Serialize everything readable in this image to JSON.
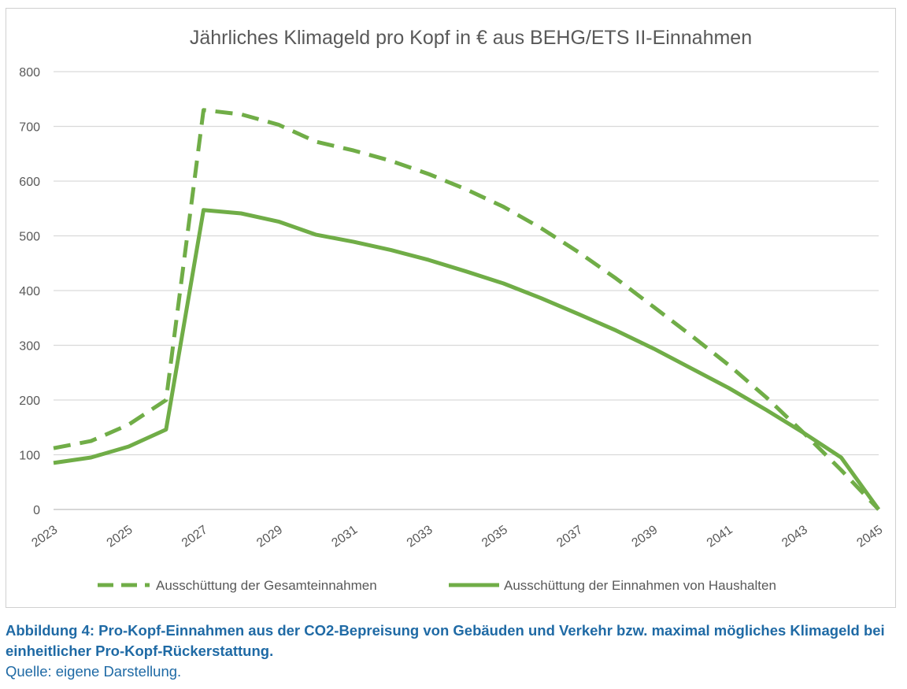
{
  "chart_data": {
    "type": "line",
    "title": "Jährliches Klimageld pro Kopf in € aus BEHG/ETS II-Einnahmen",
    "x": [
      2023,
      2024,
      2025,
      2026,
      2027,
      2028,
      2029,
      2030,
      2031,
      2032,
      2033,
      2034,
      2035,
      2036,
      2037,
      2038,
      2039,
      2040,
      2041,
      2042,
      2043,
      2044,
      2045
    ],
    "x_tick_labels": [
      "2023",
      "2025",
      "2027",
      "2029",
      "2031",
      "2033",
      "2035",
      "2037",
      "2039",
      "2041",
      "2043",
      "2045"
    ],
    "ylim": [
      0,
      800
    ],
    "y_ticks": [
      0,
      100,
      200,
      300,
      400,
      500,
      600,
      700,
      800
    ],
    "grid": "horizontal",
    "legend_position": "bottom",
    "series": [
      {
        "name": "Ausschüttung der Gesamteinnahmen",
        "style": "dashed",
        "color": "#70ad47",
        "values": [
          112,
          125,
          155,
          200,
          730,
          722,
          703,
          672,
          656,
          637,
          613,
          585,
          553,
          514,
          470,
          422,
          370,
          318,
          264,
          205,
          140,
          72,
          0
        ]
      },
      {
        "name": "Ausschüttung der Einnahmen von Haushalten",
        "style": "solid",
        "color": "#70ad47",
        "values": [
          85,
          95,
          115,
          146,
          547,
          541,
          526,
          502,
          489,
          474,
          456,
          435,
          413,
          386,
          357,
          327,
          294,
          258,
          222,
          182,
          140,
          95,
          0
        ]
      }
    ]
  },
  "caption": {
    "bold": "Abbildung 4: Pro-Kopf-Einnahmen aus der CO2-Bepreisung von Gebäuden und Verkehr bzw. maximal mögliches Klimageld bei einheitlicher Pro-Kopf-Rückerstattung.",
    "source": "Quelle: eigene Darstellung."
  }
}
